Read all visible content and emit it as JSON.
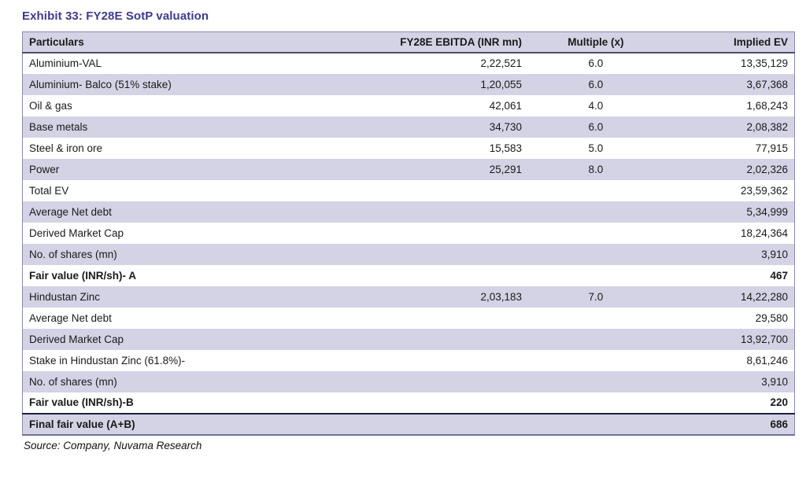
{
  "exhibit": {
    "title": "Exhibit 33: FY28E SotP valuation",
    "source": "Source: Company, Nuvama Research"
  },
  "colors": {
    "title_accent": "#3b3b94",
    "row_stripe": "#d3d3e5",
    "table_border": "#8a8ab0",
    "header_rule": "#4d4d70"
  },
  "table": {
    "columns": [
      {
        "label": "Particulars",
        "align": "left"
      },
      {
        "label": "FY28E EBITDA (INR mn)",
        "align": "right"
      },
      {
        "label": "Multiple (x)",
        "align": "center"
      },
      {
        "label": "Implied EV",
        "align": "right"
      }
    ],
    "rows": [
      {
        "particulars": "Aluminium-VAL",
        "ebitda": "2,22,521",
        "multiple": "6.0",
        "implied_ev": "13,35,129",
        "bold": false,
        "final": false
      },
      {
        "particulars": "Aluminium- Balco (51% stake)",
        "ebitda": "1,20,055",
        "multiple": "6.0",
        "implied_ev": "3,67,368",
        "bold": false,
        "final": false
      },
      {
        "particulars": "Oil & gas",
        "ebitda": "42,061",
        "multiple": "4.0",
        "implied_ev": "1,68,243",
        "bold": false,
        "final": false
      },
      {
        "particulars": "Base metals",
        "ebitda": "34,730",
        "multiple": "6.0",
        "implied_ev": "2,08,382",
        "bold": false,
        "final": false
      },
      {
        "particulars": "Steel & iron ore",
        "ebitda": "15,583",
        "multiple": "5.0",
        "implied_ev": "77,915",
        "bold": false,
        "final": false
      },
      {
        "particulars": "Power",
        "ebitda": "25,291",
        "multiple": "8.0",
        "implied_ev": "2,02,326",
        "bold": false,
        "final": false
      },
      {
        "particulars": "Total EV",
        "ebitda": "",
        "multiple": "",
        "implied_ev": "23,59,362",
        "bold": false,
        "final": false
      },
      {
        "particulars": "Average Net debt",
        "ebitda": "",
        "multiple": "",
        "implied_ev": "5,34,999",
        "bold": false,
        "final": false
      },
      {
        "particulars": "Derived Market Cap",
        "ebitda": "",
        "multiple": "",
        "implied_ev": "18,24,364",
        "bold": false,
        "final": false
      },
      {
        "particulars": "No. of shares (mn)",
        "ebitda": "",
        "multiple": "",
        "implied_ev": "3,910",
        "bold": false,
        "final": false
      },
      {
        "particulars": "Fair value (INR/sh)- A",
        "ebitda": "",
        "multiple": "",
        "implied_ev": "467",
        "bold": true,
        "final": false
      },
      {
        "particulars": "Hindustan Zinc",
        "ebitda": "2,03,183",
        "multiple": "7.0",
        "implied_ev": "14,22,280",
        "bold": false,
        "final": false
      },
      {
        "particulars": "Average Net debt",
        "ebitda": "",
        "multiple": "",
        "implied_ev": "29,580",
        "bold": false,
        "final": false
      },
      {
        "particulars": "Derived Market Cap",
        "ebitda": "",
        "multiple": "",
        "implied_ev": "13,92,700",
        "bold": false,
        "final": false
      },
      {
        "particulars": "Stake in Hindustan Zinc (61.8%)-",
        "ebitda": "",
        "multiple": "",
        "implied_ev": "8,61,246",
        "bold": false,
        "final": false
      },
      {
        "particulars": "No. of shares (mn)",
        "ebitda": "",
        "multiple": "",
        "implied_ev": "3,910",
        "bold": false,
        "final": false
      },
      {
        "particulars": "Fair value (INR/sh)-B",
        "ebitda": "",
        "multiple": "",
        "implied_ev": "220",
        "bold": true,
        "final": false
      },
      {
        "particulars": "Final fair value (A+B)",
        "ebitda": "",
        "multiple": "",
        "implied_ev": "686",
        "bold": true,
        "final": true
      }
    ]
  }
}
